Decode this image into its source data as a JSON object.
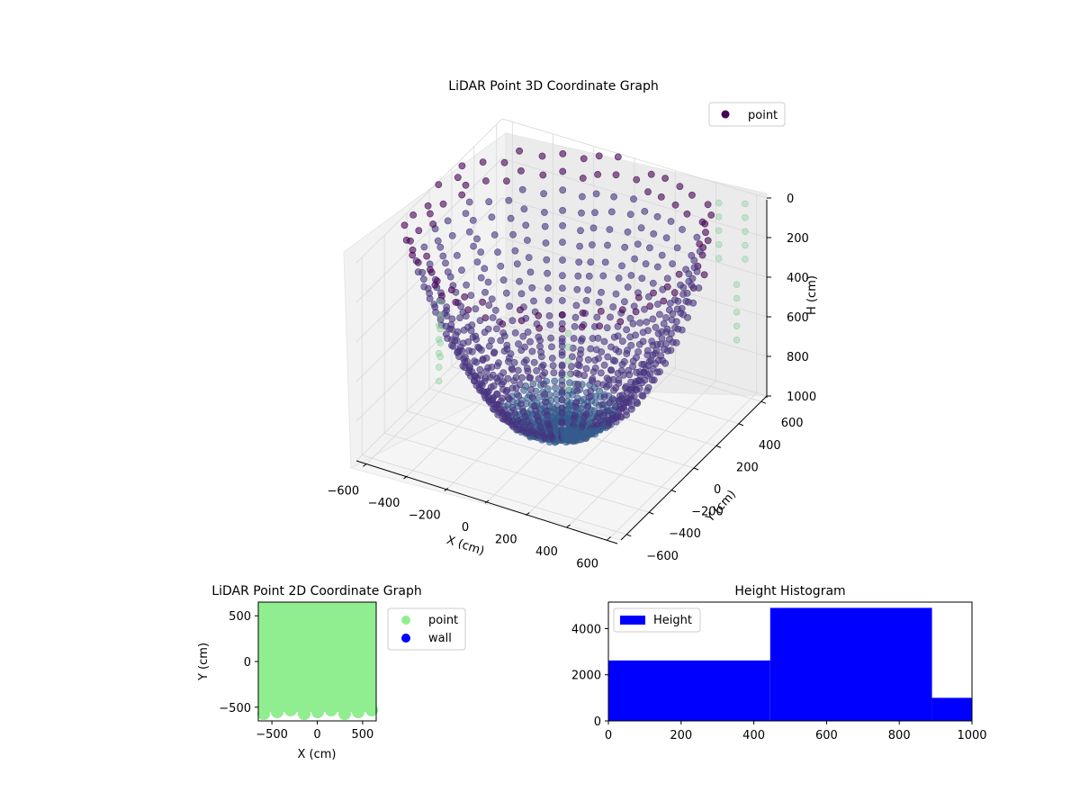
{
  "chart_data": [
    {
      "type": "scatter",
      "projection": "3d",
      "title": "LiDAR Point 3D Coordinate Graph",
      "xlabel": "X (cm)",
      "ylabel": "Y (cm)",
      "zlabel": "H (cm)",
      "xlim": [
        -650,
        650
      ],
      "ylim": [
        -650,
        650
      ],
      "zlim": [
        0,
        1000
      ],
      "z_axis_inverted": true,
      "x_ticks": [
        -600,
        -400,
        -200,
        0,
        200,
        400,
        600
      ],
      "y_ticks": [
        -600,
        -400,
        -200,
        0,
        200,
        400,
        600
      ],
      "z_ticks": [
        0,
        200,
        400,
        600,
        800,
        1000
      ],
      "legend": {
        "position": "top-right",
        "entries": [
          {
            "label": "point",
            "color": "#440154"
          }
        ]
      },
      "colormap": "viridis",
      "series": [
        {
          "name": "point",
          "description": "dense radial LiDAR scan arcs around origin"
        }
      ],
      "grid": true
    },
    {
      "type": "scatter",
      "title": "LiDAR Point 2D Coordinate Graph",
      "xlabel": "X (cm)",
      "ylabel": "Y (cm)",
      "xlim": [
        -650,
        650
      ],
      "ylim": [
        -650,
        650
      ],
      "x_ticks": [
        -500,
        0,
        500
      ],
      "y_ticks": [
        -500,
        0,
        500
      ],
      "legend": {
        "position": "outside-right",
        "entries": [
          {
            "label": "point",
            "color": "#90ee90"
          },
          {
            "label": "wall",
            "color": "#0000ff"
          }
        ]
      },
      "grid": false
    },
    {
      "type": "bar",
      "subtype": "histogram",
      "title": "Height Histogram",
      "bins": [
        {
          "x0": 0,
          "x1": 445,
          "count": 2620
        },
        {
          "x0": 445,
          "x1": 890,
          "count": 4900
        },
        {
          "x0": 890,
          "x1": 1000,
          "count": 1000
        }
      ],
      "xlim": [
        0,
        1000
      ],
      "ylim": [
        0,
        5150
      ],
      "x_ticks": [
        0,
        200,
        400,
        600,
        800,
        1000
      ],
      "y_ticks": [
        0,
        2000,
        4000
      ],
      "legend": {
        "position": "top-left",
        "entries": [
          {
            "label": "Height",
            "color": "#0000ff"
          }
        ]
      },
      "color": "#0000ff",
      "grid": false
    }
  ]
}
